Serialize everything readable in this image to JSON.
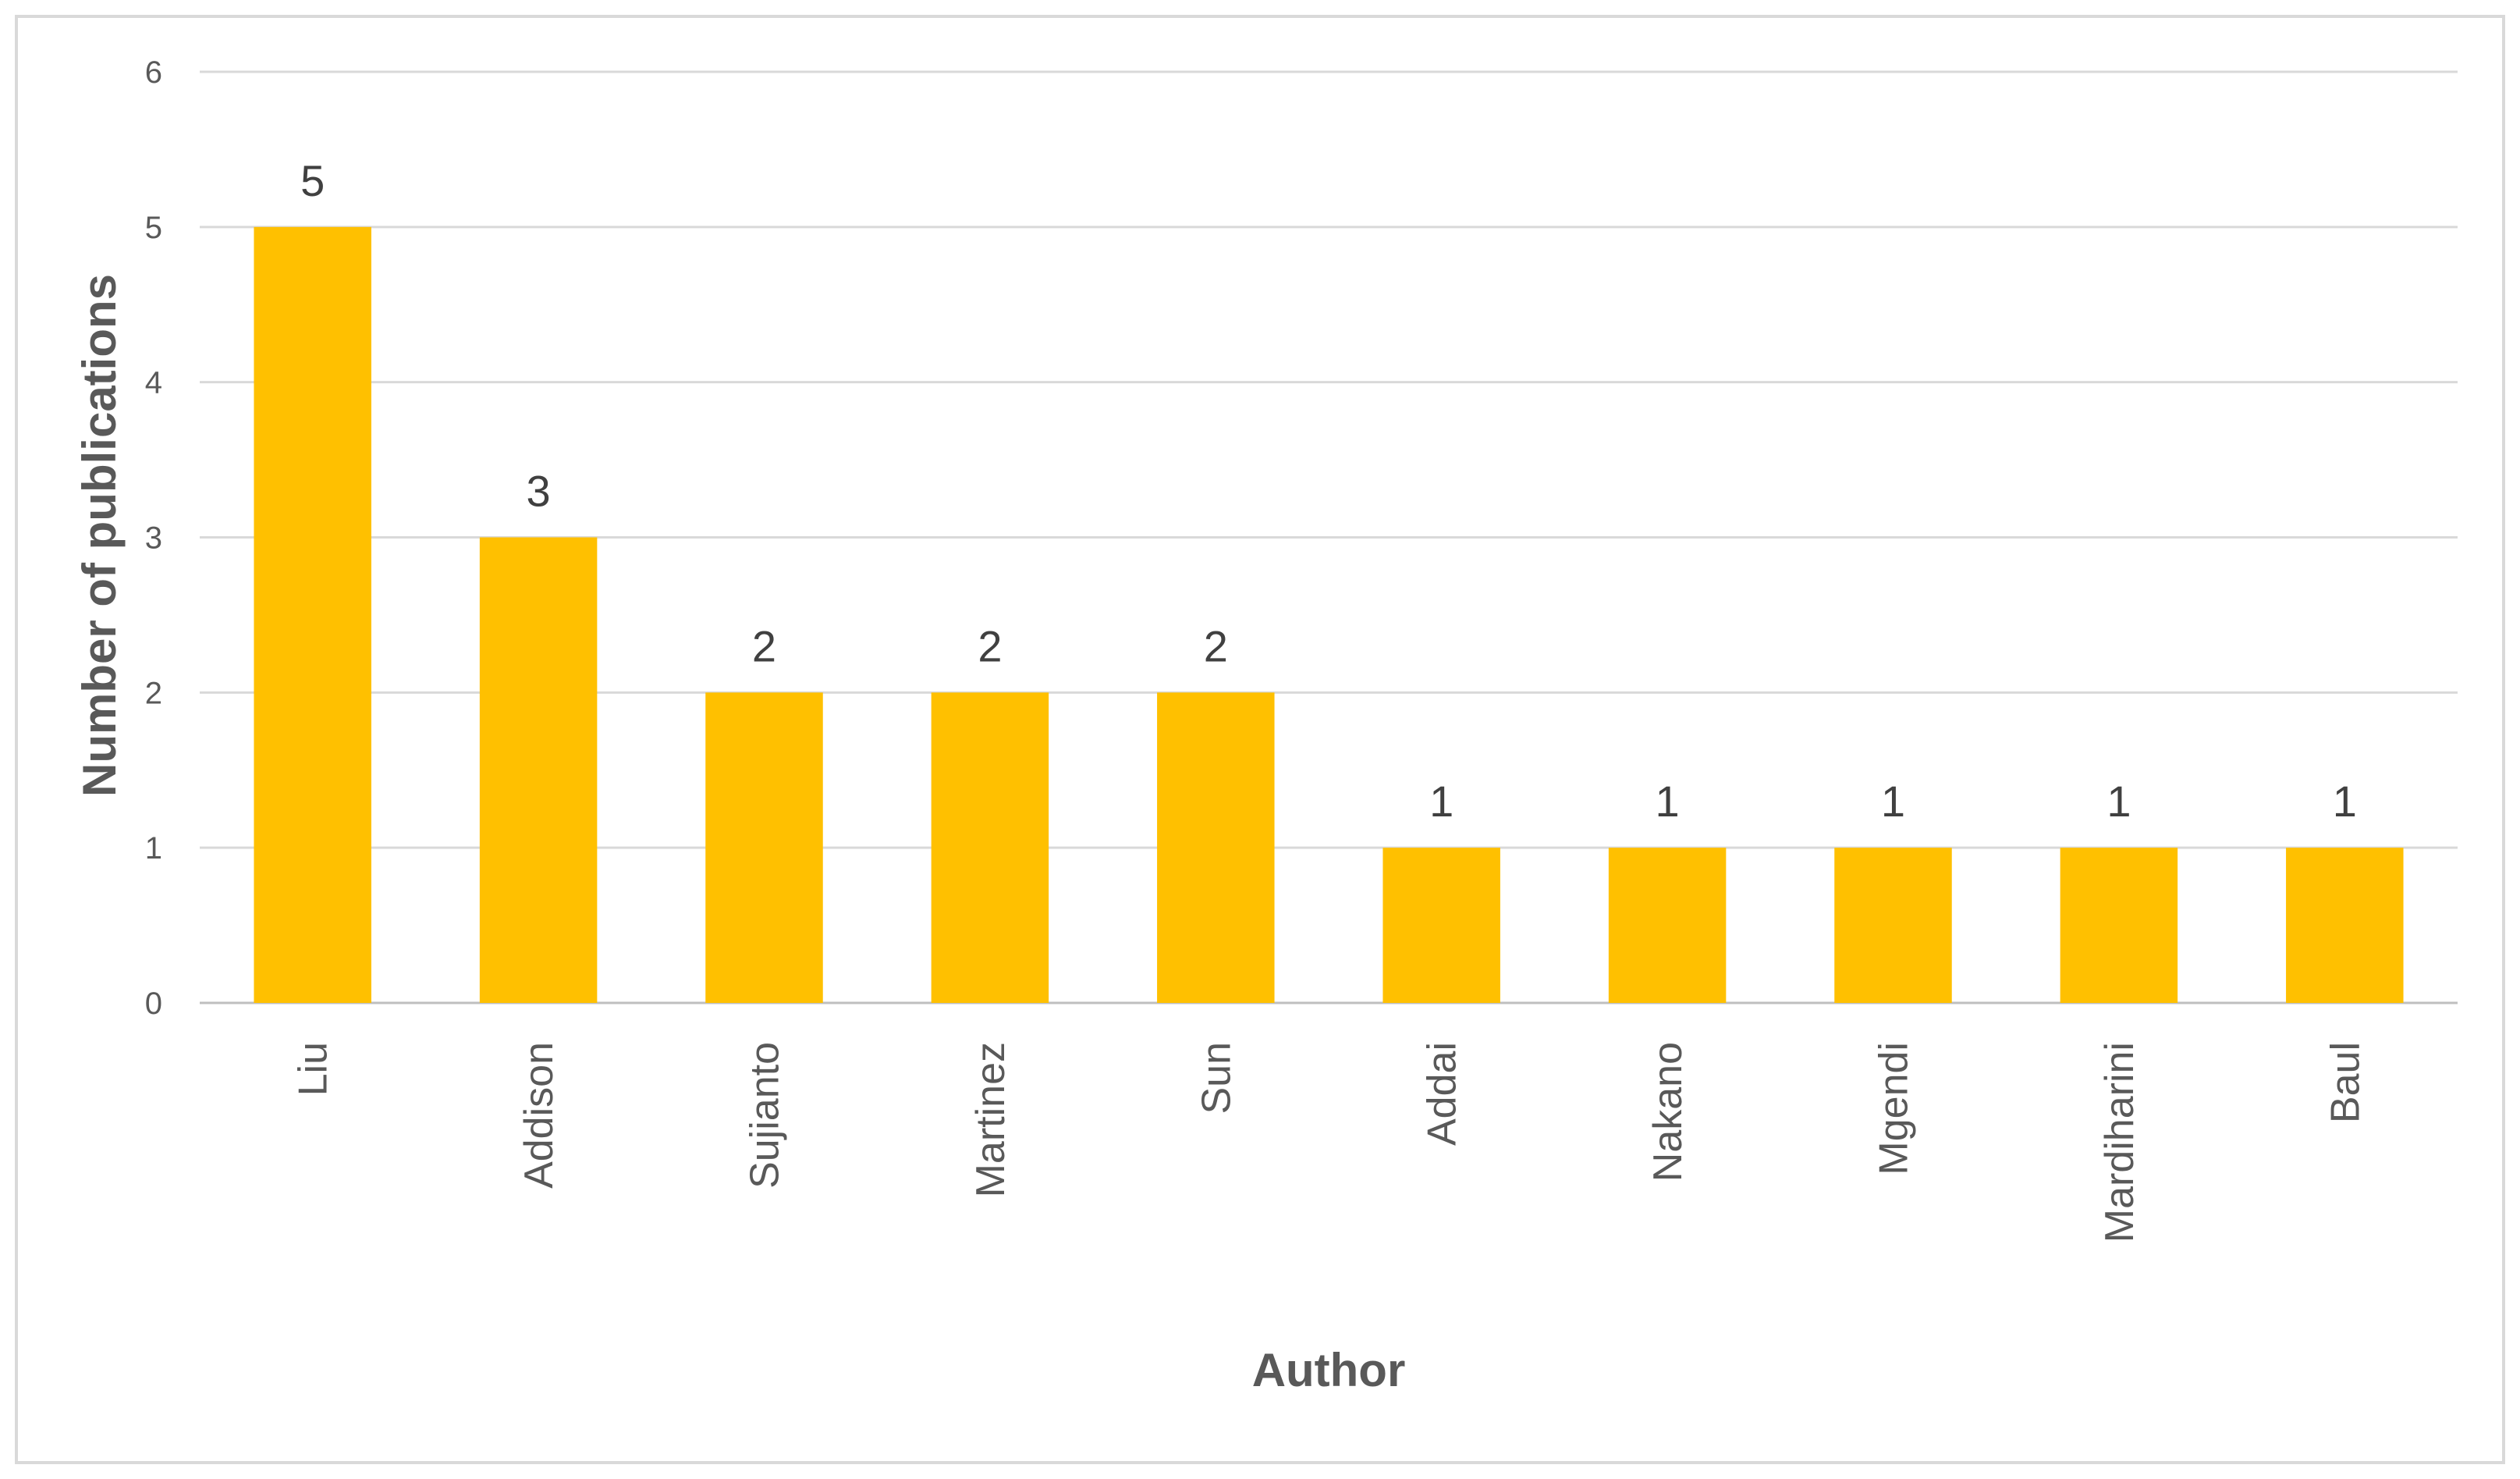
{
  "chart_data": {
    "type": "bar",
    "title": "",
    "xlabel": "Author",
    "ylabel": "Number of publications",
    "categories": [
      "Liu",
      "Addison",
      "Sujianto",
      "Martinez",
      "Sun",
      "Addai",
      "Nakano",
      "Mgendi",
      "Mardiharini",
      "Baul"
    ],
    "values": [
      5,
      3,
      2,
      2,
      2,
      1,
      1,
      1,
      1,
      1
    ],
    "ylim": [
      0,
      6
    ],
    "yticks": [
      0,
      1,
      2,
      3,
      4,
      5,
      6
    ],
    "grid": true,
    "data_labels": true,
    "legend": "none",
    "bar_color": "#FFC000",
    "gridline_color": "#D9D9D9"
  }
}
